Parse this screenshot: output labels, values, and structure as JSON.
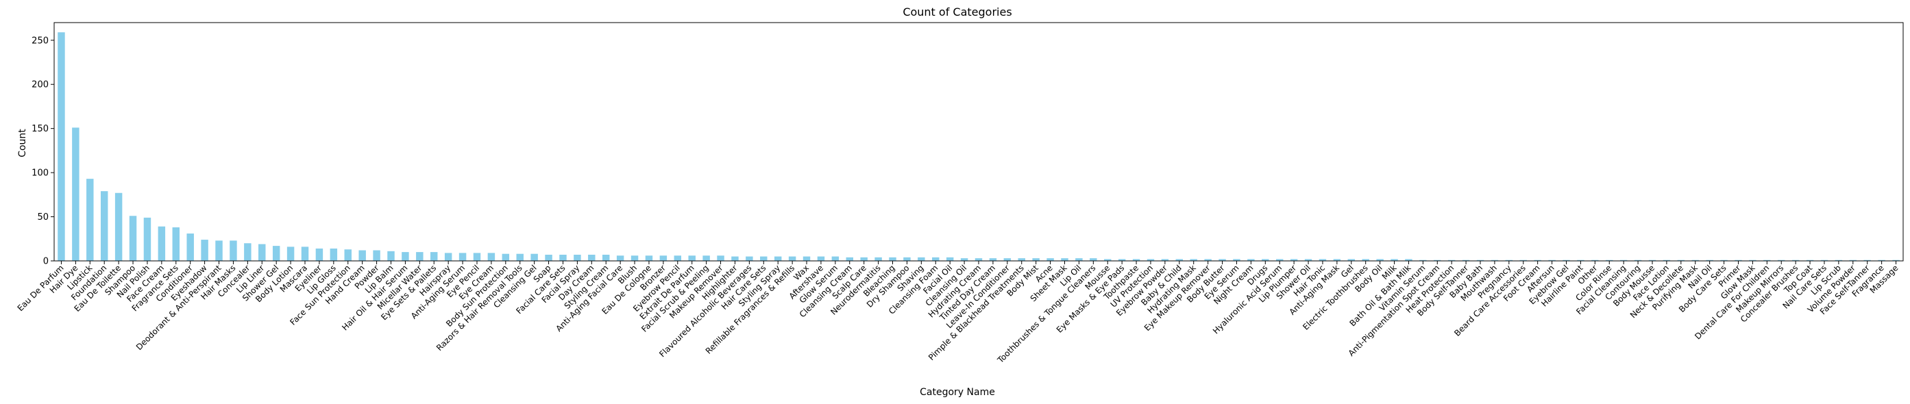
{
  "chart_data": {
    "type": "bar",
    "title": "Count of Categories",
    "xlabel": "Category Name",
    "ylabel": "Count",
    "ylim": [
      0,
      270
    ],
    "yticks": [
      0,
      50,
      100,
      150,
      200,
      250
    ],
    "bar_color": "#87ceeb",
    "grid": false,
    "legend": "none",
    "categories": [
      "Eau De Parfum",
      "Hair Dye",
      "Lipstick",
      "Foundation",
      "Eau De Toilette",
      "Shampoo",
      "Nail Polish",
      "Face Cream",
      "Fragrance Sets",
      "Conditioner",
      "Eyeshadow",
      "Deodorant & Anti-Perspirant",
      "Hair Masks",
      "Concealer",
      "Lip Liner",
      "Shower Gel",
      "Body Lotion",
      "Mascara",
      "Eyeliner",
      "Lip Gloss",
      "Face Sun Protection",
      "Hand Cream",
      "Powder",
      "Lip Balm",
      "Hair Oil & Hair Serum",
      "Micellar Water",
      "Eye Sets & Pallets",
      "Hairspray",
      "Anti-Aging Serum",
      "Eye Pencil",
      "Eye Cream",
      "Body Sun Protection",
      "Razors & Hair Removal Tools",
      "Cleansing Gel",
      "Soap",
      "Facial Care Sets",
      "Facial Spray",
      "Day Cream",
      "Styling Cream",
      "Anti-Aging Facial Care",
      "Blush",
      "Eau De Cologne",
      "Bronzer",
      "Eyebrow Pencil",
      "Extrait De Parfum",
      "Facial Scrub & Peeling",
      "Makeup Remover",
      "Highlighter",
      "Flavoured Alcoholic Beverages",
      "Hair Care Sets",
      "Styling Spray",
      "Refillable Fragrances & Refills",
      "Wax",
      "Aftershave",
      "Glow Serum",
      "Cleansing Cream",
      "Scalp Care",
      "Neurodermatitis",
      "Bleaching",
      "Dry Shampoo",
      "Shaving",
      "Cleansing Foam",
      "Facial Oil",
      "Cleansing Oil",
      "Hydrating Cream",
      "Tinted Day Cream",
      "Leave-In Conditioner",
      "Pimple & Blackhead Treatments",
      "Body Mist",
      "Acne",
      "Sheet Mask",
      "Lip Oil",
      "Toothbrushes & Tongue Cleaners",
      "Mousse",
      "Eye Masks & Eye Pads",
      "Toothpaste",
      "UV Protection",
      "Eyebrow Powder",
      "Baby & Child",
      "Hydrating Mask",
      "Eye Makeup Remover",
      "Body Butter",
      "Eye Serum",
      "Night Cream",
      "Drugs",
      "Hyaluronic Acid Serum",
      "Lip Plumper",
      "Shower Oil",
      "Hair Tonic",
      "Anti-Aging Mask",
      "Gel",
      "Electric Toothbrushes",
      "Body Oil",
      "Milk",
      "Bath Oil & Bath Milk",
      "Vitamin Serum",
      "Anti-Pigmentation Spot Cream",
      "Heat Protection",
      "Body Self-Tanner",
      "Baby Bath",
      "Mouthwash",
      "Pregnancy",
      "Beard Care Accessories",
      "Foot Cream",
      "Aftersun",
      "Eyebrow Gel",
      "Hairline Paint",
      "Other",
      "Color Rinse",
      "Facial Cleansing",
      "Contouring",
      "Body Mousse",
      "Face Lotion",
      "Neck & Decollete",
      "Purifying Mask",
      "Nail Oil",
      "Body Care Sets",
      "Primer",
      "Glow Mask",
      "Dental Care For Children",
      "Makeup Mirrors",
      "Concealer Brushes",
      "Top Coat",
      "Nail Care Sets",
      "Lip Scrub",
      "Volume Powder",
      "Face Self-Tanner",
      "Fragrance",
      "Massage"
    ],
    "values": [
      259,
      151,
      93,
      79,
      77,
      51,
      49,
      39,
      38,
      31,
      24,
      23,
      23,
      20,
      19,
      17,
      16,
      16,
      14,
      14,
      13,
      12,
      12,
      11,
      10,
      10,
      10,
      9,
      9,
      9,
      9,
      8,
      8,
      8,
      7,
      7,
      7,
      7,
      7,
      6,
      6,
      6,
      6,
      6,
      6,
      6,
      6,
      5,
      5,
      5,
      5,
      5,
      5,
      5,
      5,
      4,
      4,
      4,
      4,
      4,
      4,
      4,
      4,
      3,
      3,
      3,
      3,
      3,
      3,
      3,
      3,
      3,
      3,
      2,
      2,
      2,
      2,
      2,
      2,
      2,
      2,
      2,
      2,
      2,
      2,
      2,
      2,
      2,
      2,
      2,
      2,
      2,
      2,
      2,
      2,
      1,
      1,
      1,
      1,
      1,
      1,
      1,
      1,
      1,
      1,
      1,
      1,
      1,
      1,
      1,
      1,
      1,
      1,
      1,
      1,
      1,
      1,
      1,
      1,
      1,
      1,
      1,
      1,
      1,
      1,
      1,
      1,
      1,
      1
    ]
  }
}
